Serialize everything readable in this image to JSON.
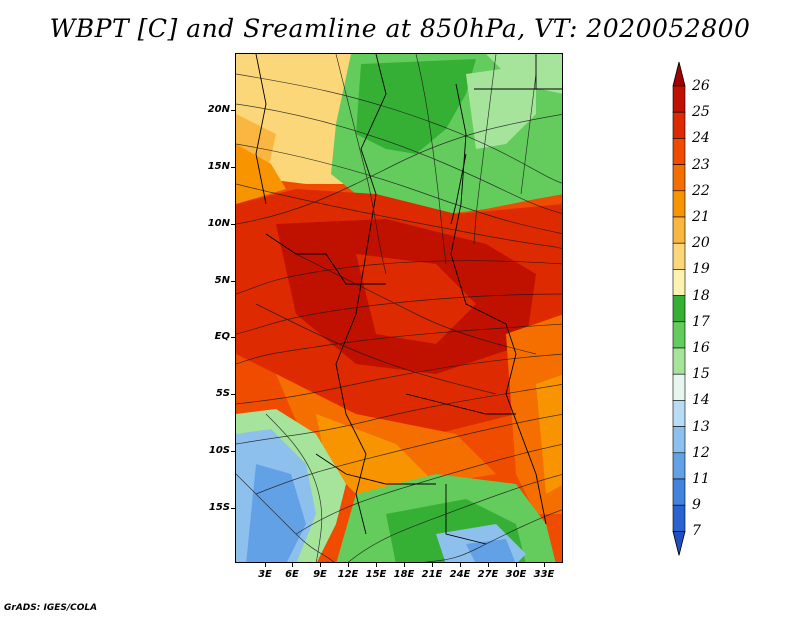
{
  "title": "WBPT [C] and Sreamline at 850hPa, VT: 2020052800",
  "credit": "GrADS: IGES/COLA",
  "map": {
    "lat_ticks": [
      "20N",
      "15N",
      "10N",
      "5N",
      "EQ",
      "5S",
      "10S",
      "15S"
    ],
    "lon_ticks": [
      "3E",
      "6E",
      "9E",
      "12E",
      "15E",
      "18E",
      "21E",
      "24E",
      "27E",
      "30E",
      "33E"
    ]
  },
  "colorbar": {
    "levels": [
      "26",
      "25",
      "24",
      "23",
      "22",
      "21",
      "20",
      "19",
      "18",
      "17",
      "16",
      "15",
      "14",
      "13",
      "12",
      "11",
      "9",
      "7"
    ],
    "colors": [
      "#a00000",
      "#c01000",
      "#dd2a00",
      "#f04c00",
      "#f56e00",
      "#f89400",
      "#f9b640",
      "#fbd77a",
      "#fdf3b0",
      "#35b035",
      "#63cc5c",
      "#a6e49c",
      "#e6f7f0",
      "#b8dcf5",
      "#8ec0ee",
      "#63a1e6",
      "#4382dd",
      "#2a62d2",
      "#1f4fc0"
    ]
  }
}
